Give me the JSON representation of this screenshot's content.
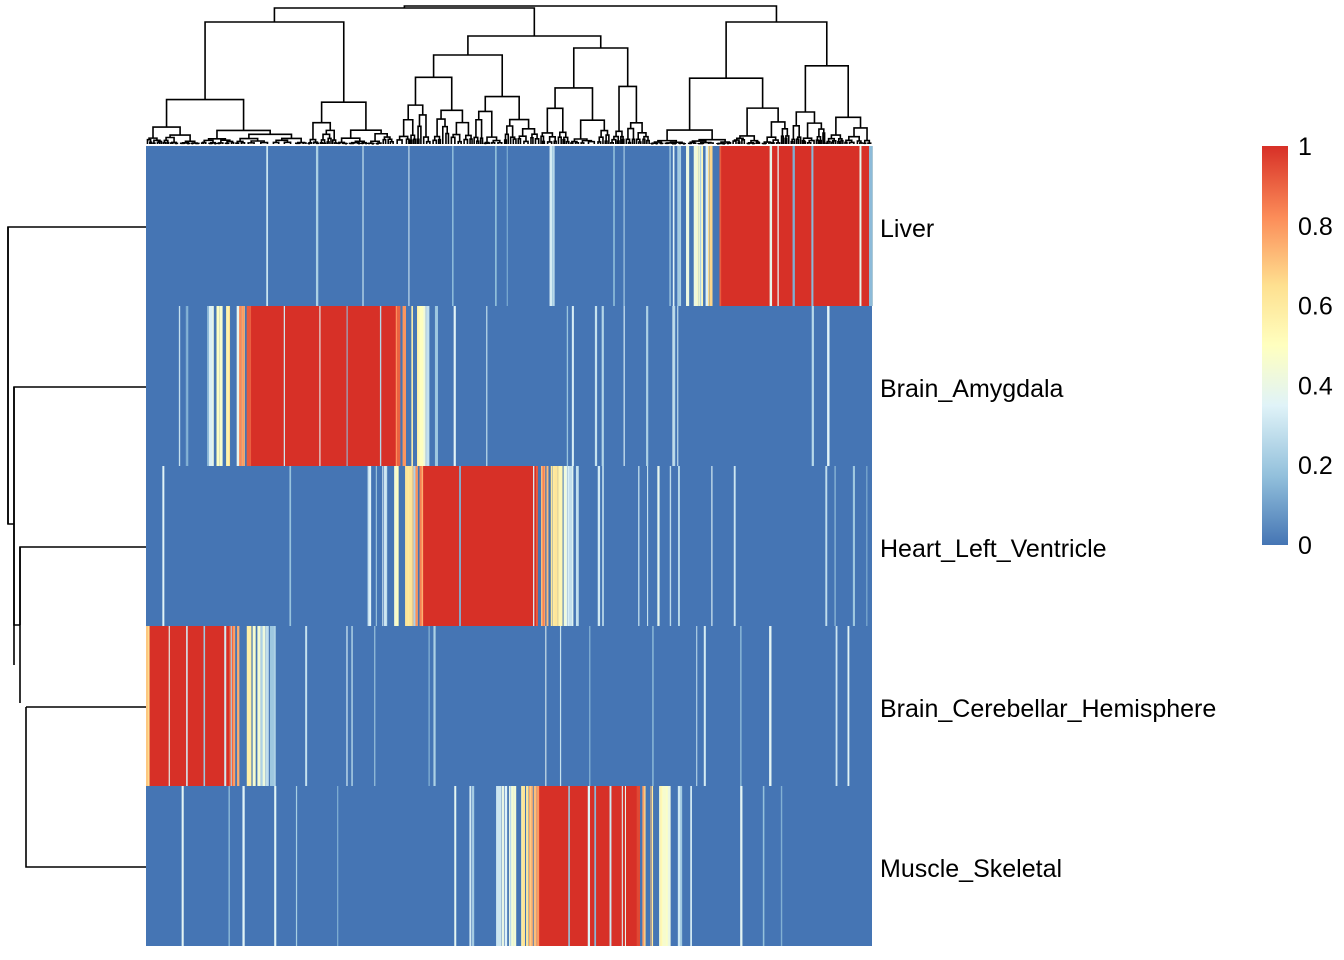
{
  "chart_data": {
    "type": "heatmap",
    "title": "",
    "rows": [
      "Liver",
      "Brain_Amygdala",
      "Heart_Left_Ventricle",
      "Brain_Cerebellar_Hemisphere",
      "Muscle_Skeletal"
    ],
    "column_count": 726,
    "value_range": [
      0,
      1
    ],
    "row_dendrogram": true,
    "column_dendrogram": true,
    "legend": {
      "placement": "right",
      "ticks": [
        0,
        0.2,
        0.4,
        0.6,
        0.8,
        1
      ],
      "tick_labels": [
        "0",
        "0.2",
        "0.4",
        "0.6",
        "0.8",
        "1"
      ],
      "colors": [
        "#4575b4",
        "#91bfdb",
        "#e0f3f8",
        "#ffffbf",
        "#fee090",
        "#fc8d59",
        "#d73027"
      ]
    },
    "block_colors": {
      "low": "#4575b4",
      "high": "#d73027"
    },
    "high_blocks": {
      "Brain_Cerebellar_Hemisphere": [
        0,
        0.12
      ],
      "Brain_Amygdala": [
        0.14,
        0.345
      ],
      "Heart_Left_Ventricle": [
        0.38,
        0.54
      ],
      "Muscle_Skeletal": [
        0.54,
        0.68
      ],
      "Liver": [
        0.79,
        1.0
      ]
    }
  }
}
